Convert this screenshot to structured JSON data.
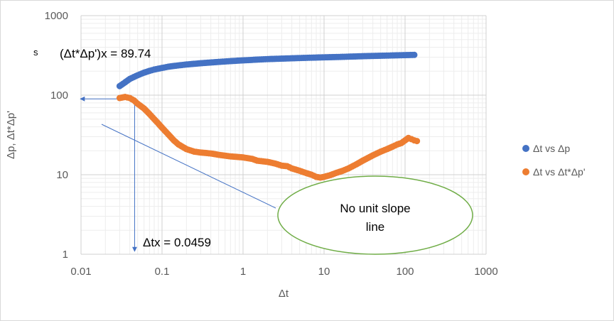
{
  "chart_data": {
    "type": "scatter",
    "x_scale": "log",
    "y_scale": "log",
    "xlabel": "Δt",
    "ylabel": "Δp, Δt*Δp'",
    "xlim": [
      0.01,
      1000
    ],
    "ylim": [
      1,
      1000
    ],
    "x_tick_labels": [
      "0.01",
      "0.1",
      "1",
      "10",
      "100",
      "1000"
    ],
    "y_tick_labels": [
      "1",
      "10",
      "100",
      "1000"
    ],
    "grid": "major and minor",
    "legend_position": "right",
    "series": [
      {
        "name": "Δt vs Δp",
        "color": "#4472c4",
        "points": [
          [
            0.03,
            130
          ],
          [
            0.035,
            145
          ],
          [
            0.04,
            160
          ],
          [
            0.05,
            178
          ],
          [
            0.06,
            192
          ],
          [
            0.07,
            202
          ],
          [
            0.08,
            210
          ],
          [
            0.1,
            220
          ],
          [
            0.12,
            228
          ],
          [
            0.15,
            235
          ],
          [
            0.2,
            243
          ],
          [
            0.3,
            252
          ],
          [
            0.5,
            262
          ],
          [
            0.7,
            268
          ],
          [
            1,
            274
          ],
          [
            1.5,
            280
          ],
          [
            2,
            284
          ],
          [
            3,
            288
          ],
          [
            5,
            293
          ],
          [
            7,
            296
          ],
          [
            10,
            299
          ],
          [
            15,
            302
          ],
          [
            20,
            305
          ],
          [
            30,
            309
          ],
          [
            50,
            313
          ],
          [
            70,
            316
          ],
          [
            100,
            319
          ],
          [
            130,
            321
          ]
        ]
      },
      {
        "name": "Δt vs Δt*Δp'",
        "color": "#ed7d31",
        "points": [
          [
            0.03,
            92
          ],
          [
            0.035,
            95
          ],
          [
            0.04,
            92
          ],
          [
            0.045,
            86
          ],
          [
            0.05,
            78
          ],
          [
            0.06,
            68
          ],
          [
            0.07,
            58
          ],
          [
            0.08,
            50
          ],
          [
            0.09,
            44
          ],
          [
            0.1,
            39
          ],
          [
            0.12,
            32
          ],
          [
            0.14,
            27
          ],
          [
            0.16,
            24
          ],
          [
            0.2,
            21
          ],
          [
            0.25,
            19.5
          ],
          [
            0.3,
            19
          ],
          [
            0.4,
            18.5
          ],
          [
            0.5,
            17.8
          ],
          [
            0.7,
            17
          ],
          [
            1,
            16.5
          ],
          [
            1.3,
            15.8
          ],
          [
            1.5,
            15
          ],
          [
            2,
            14.5
          ],
          [
            2.5,
            13.8
          ],
          [
            3,
            13
          ],
          [
            3.5,
            12.8
          ],
          [
            4,
            12
          ],
          [
            5,
            11.2
          ],
          [
            6,
            10.5
          ],
          [
            7,
            10
          ],
          [
            8,
            9.4
          ],
          [
            9,
            9.2
          ],
          [
            10,
            9.4
          ],
          [
            12,
            9.9
          ],
          [
            14,
            10.5
          ],
          [
            17,
            11.2
          ],
          [
            20,
            12
          ],
          [
            25,
            13.5
          ],
          [
            30,
            15
          ],
          [
            40,
            17.5
          ],
          [
            50,
            19.5
          ],
          [
            60,
            21
          ],
          [
            70,
            22.5
          ],
          [
            80,
            24
          ],
          [
            90,
            25
          ],
          [
            100,
            27
          ],
          [
            110,
            29
          ],
          [
            120,
            28
          ],
          [
            130,
            27
          ],
          [
            140,
            26.5
          ]
        ]
      }
    ],
    "annotations": {
      "s_label": "s",
      "intercept_label": "(Δt*Δp')x = 89.74",
      "tx_label": "Δtx = 0.0459",
      "ellipse_line1": "No unit slope",
      "ellipse_line2": "line",
      "tx_value": 0.0459,
      "intercept_value": 89.74
    }
  }
}
